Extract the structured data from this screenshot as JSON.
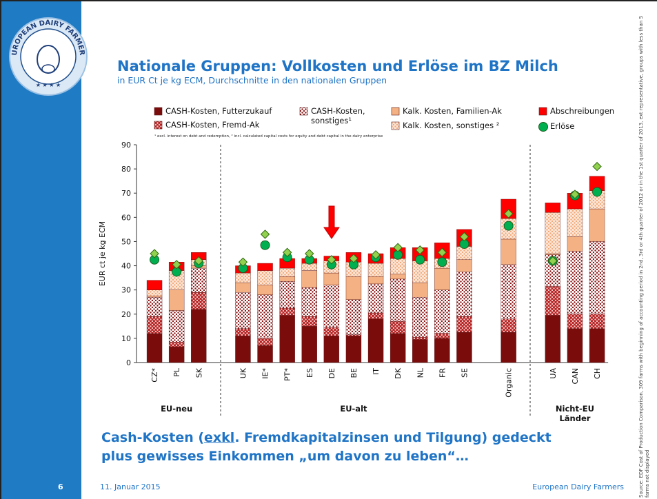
{
  "logo_text": "EUROPEAN DAIRY FARMERS",
  "header": {
    "title": "Nationale Gruppen: Vollkosten und Erlöse im BZ Milch",
    "subtitle": "in EUR Ct je kg ECM, Durchschnitte in den nationalen Gruppen"
  },
  "chart_data": {
    "type": "bar",
    "stacked": true,
    "ylabel": "EUR ct je kg ECM",
    "ylim": [
      0,
      90
    ],
    "yticks": [
      0,
      10,
      20,
      30,
      40,
      50,
      60,
      70,
      80,
      90
    ],
    "categories": [
      "CZ*",
      "PL",
      "SK",
      null,
      "UK",
      "IE*",
      "PT*",
      "ES",
      "DE",
      "BE",
      "IT",
      "DK",
      "NL",
      "FR",
      "SE",
      null,
      "Organic",
      null,
      "UA",
      "CAN",
      "CH"
    ],
    "groups": [
      "EU-neu",
      "EU-alt",
      null,
      "Nicht-EU Länder"
    ],
    "series": [
      {
        "name": "CASH-Kosten, Futterzukauf",
        "color": "#7b0c0c",
        "values": [
          12,
          6.5,
          22,
          null,
          11,
          7,
          19.5,
          15,
          11,
          11,
          18,
          12,
          9.5,
          10,
          12.5,
          null,
          12.5,
          null,
          19.5,
          14,
          14
        ]
      },
      {
        "name": "CASH-Kosten, Fremd-Ak",
        "color": "#b52020",
        "dot_color": "#f3c9c9",
        "values": [
          7,
          2,
          7,
          null,
          3,
          3,
          3,
          4,
          3.5,
          0.5,
          2.5,
          5,
          1,
          2,
          6.5,
          null,
          5.5,
          null,
          12,
          6,
          6
        ]
      },
      {
        "name": "CASH-Kosten, sonstiges¹",
        "color": "#ffffff",
        "dot_color": "#8b1010",
        "values": [
          8,
          13,
          10,
          null,
          15,
          18,
          11,
          12,
          17.5,
          14.5,
          12,
          17.5,
          16.5,
          18,
          18.5,
          null,
          22.5,
          null,
          13,
          26,
          30
        ]
      },
      {
        "name": "Kalk. Kosten, Familien-Ak",
        "color": "#f4b183",
        "values": [
          0.5,
          8.5,
          1,
          null,
          4,
          4,
          2,
          7,
          5,
          9.5,
          3,
          2,
          6,
          9,
          5,
          null,
          10.5,
          null,
          0.5,
          6,
          13.5
        ]
      },
      {
        "name": "Kalk. Kosten, sonstiges ²",
        "color": "#fde9dc",
        "dot_color": "#f2a877",
        "values": [
          2.5,
          8,
          2.5,
          null,
          4,
          6,
          3.5,
          3,
          5,
          6,
          5.5,
          6.5,
          9,
          4,
          5.5,
          null,
          8.5,
          null,
          17,
          11.5,
          7.5
        ]
      },
      {
        "name": "Abschreibungen",
        "color": "#ff0000",
        "values": [
          4,
          3.5,
          3,
          null,
          3,
          3,
          4,
          2,
          2,
          4,
          4,
          4.5,
          5.5,
          6.5,
          7,
          null,
          8,
          null,
          4,
          6.5,
          6
        ]
      }
    ],
    "markers": [
      {
        "name": "Erlöse",
        "color": "#00b050",
        "shape": "circle",
        "values": [
          42.5,
          37.5,
          41,
          null,
          39,
          48.5,
          43.5,
          42.5,
          40.5,
          40.5,
          43.5,
          44.5,
          42.5,
          41.5,
          49,
          null,
          56.5,
          null,
          42,
          69,
          70.5
        ]
      },
      {
        "color": "#92d050",
        "shape": "diamond",
        "values": [
          45,
          40.5,
          42,
          null,
          41.5,
          53,
          45.5,
          45,
          42.5,
          43,
          44.5,
          47.5,
          46.5,
          45.5,
          52,
          null,
          61.5,
          null,
          42,
          69.5,
          81
        ]
      }
    ],
    "footnote": "¹ excl. interest on debt and redemption, ² incl. calculated capital costs for equity and debt capital in the dairy enterprise"
  },
  "statement": {
    "before": "Cash-Kosten (",
    "underlined": "exkl",
    "after": ". Fremdkapitalzinsen und Tilgung) gedeckt plus gewisses Einkommen „um davon zu leben“…"
  },
  "footer": {
    "page": "6",
    "date": "11. Januar 2015",
    "organization": "European Dairy Farmers"
  },
  "source": "Source: EDF Cost of Production Comparison, 309 farms with beginning of accounting period in 2nd, 3rd or 4th quarter of 2012 or in the 1st quarter of 2013, ext representative, groups with less than 5 farms not displayed"
}
